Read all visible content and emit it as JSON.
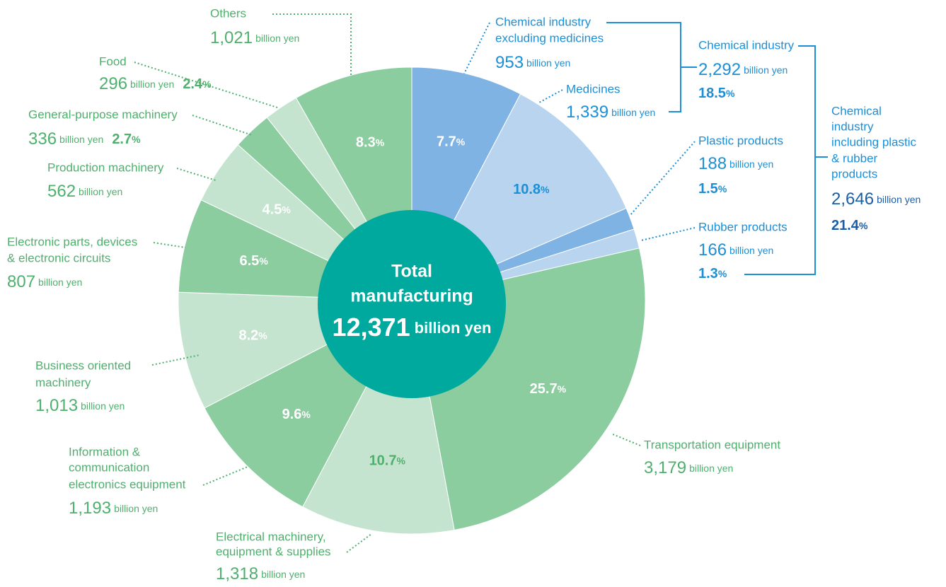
{
  "chart_data": {
    "type": "pie",
    "unit": "billion yen",
    "percent_unit": "%",
    "slices": [
      {
        "name": [
          "Chemical industry",
          "excluding medicines"
        ],
        "value": 953,
        "value_label": "953",
        "percent": 7.7,
        "color": "#7eb3e3"
      },
      {
        "name": [
          "Medicines"
        ],
        "value": 1339,
        "value_label": "1,339",
        "percent": 10.8,
        "color": "#b9d4ef"
      },
      {
        "name": [
          "Plastic products"
        ],
        "value": 188,
        "value_label": "188",
        "percent": 1.5,
        "color": "#7eb3e3"
      },
      {
        "name": [
          "Rubber products"
        ],
        "value": 166,
        "value_label": "166",
        "percent": 1.3,
        "color": "#b9d4ef"
      },
      {
        "name": [
          "Transportation equipment"
        ],
        "value": 3179,
        "value_label": "3,179",
        "percent": 25.7,
        "color": "#8ccda0"
      },
      {
        "name": [
          "Electrical machinery,",
          "equipment & supplies"
        ],
        "value": 1318,
        "value_label": "1,318",
        "percent": 10.7,
        "color": "#c5e4cf"
      },
      {
        "name": [
          "Information &",
          "communication",
          "electronics equipment"
        ],
        "value": 1193,
        "value_label": "1,193",
        "percent": 9.6,
        "color": "#8ccda0"
      },
      {
        "name": [
          "Business oriented",
          "machinery"
        ],
        "value": 1013,
        "value_label": "1,013",
        "percent": 8.2,
        "color": "#c5e4cf"
      },
      {
        "name": [
          "Electronic parts, devices",
          "& electronic circuits"
        ],
        "value": 807,
        "value_label": "807",
        "percent": 6.5,
        "color": "#8ccda0"
      },
      {
        "name": [
          "Production machinery"
        ],
        "value": 562,
        "value_label": "562",
        "percent": 4.5,
        "color": "#c5e4cf"
      },
      {
        "name": [
          "General-purpose machinery"
        ],
        "value": 336,
        "value_label": "336",
        "percent": 2.7,
        "color": "#8ccda0"
      },
      {
        "name": [
          "Food"
        ],
        "value": 296,
        "value_label": "296",
        "percent": 2.4,
        "color": "#c5e4cf"
      },
      {
        "name": [
          "Others"
        ],
        "value": 1021,
        "value_label": "1,021",
        "percent": 8.3,
        "color": "#8ccda0"
      }
    ],
    "groups": [
      {
        "name": [
          "Chemical industry"
        ],
        "value": 2292,
        "value_label": "2,292",
        "percent": 18.5
      },
      {
        "name": [
          "Chemical",
          "industry",
          "including plastic",
          "& rubber",
          "products"
        ],
        "value": 2646,
        "value_label": "2,646",
        "percent": 21.4
      }
    ],
    "total": {
      "name": [
        "Total",
        "manufacturing"
      ],
      "value": 12371,
      "value_label": "12,371"
    }
  }
}
